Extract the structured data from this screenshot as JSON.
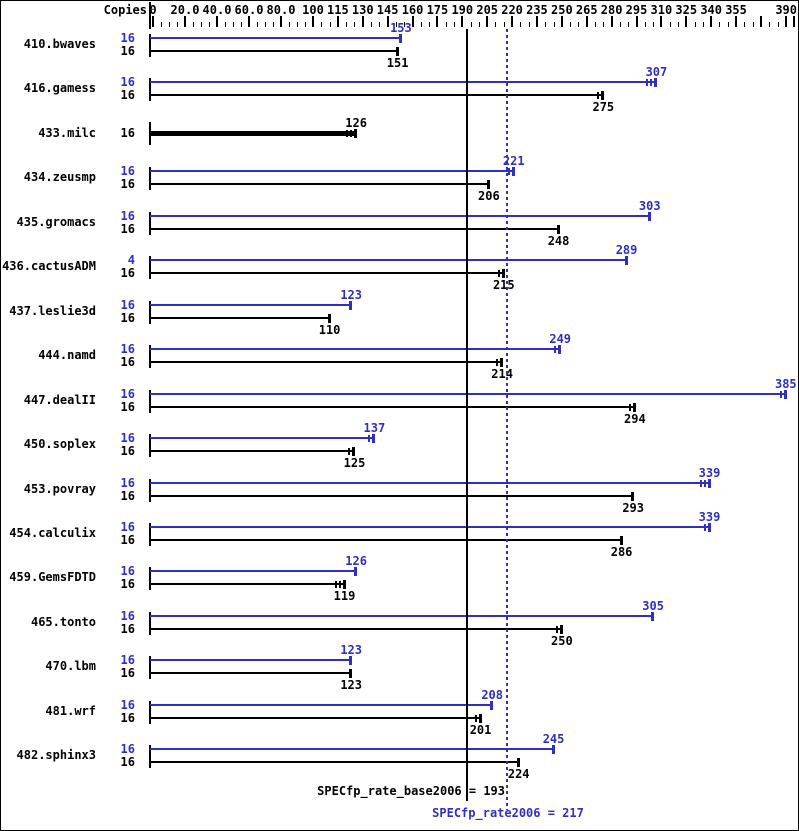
{
  "colors": {
    "peak_blue": "#3030c0",
    "base_black": "#000000",
    "background": "#ffffff"
  },
  "chart_data": {
    "type": "bar",
    "orientation": "horizontal",
    "copies_column_header": "Copies",
    "x_axis": {
      "range": [
        0,
        390
      ],
      "scale_note": "piecewise: 0-100 labeled every 20, 100-390 labeled every 15",
      "minor_tick_step": 5,
      "tick_labels": [
        {
          "v": 0,
          "t": "0"
        },
        {
          "v": 20,
          "t": "20.0"
        },
        {
          "v": 40,
          "t": "40.0"
        },
        {
          "v": 60,
          "t": "60.0"
        },
        {
          "v": 80,
          "t": "80.0"
        },
        {
          "v": 100,
          "t": "100"
        },
        {
          "v": 115,
          "t": "115"
        },
        {
          "v": 130,
          "t": "130"
        },
        {
          "v": 145,
          "t": "145"
        },
        {
          "v": 160,
          "t": "160"
        },
        {
          "v": 175,
          "t": "175"
        },
        {
          "v": 190,
          "t": "190"
        },
        {
          "v": 205,
          "t": "205"
        },
        {
          "v": 220,
          "t": "220"
        },
        {
          "v": 235,
          "t": "235"
        },
        {
          "v": 250,
          "t": "250"
        },
        {
          "v": 265,
          "t": "265"
        },
        {
          "v": 280,
          "t": "280"
        },
        {
          "v": 295,
          "t": "295"
        },
        {
          "v": 310,
          "t": "310"
        },
        {
          "v": 325,
          "t": "325"
        },
        {
          "v": 340,
          "t": "340"
        },
        {
          "v": 355,
          "t": "355"
        },
        {
          "v": 390,
          "t": "390"
        }
      ],
      "unlabeled_major_ticks": [
        370,
        385
      ]
    },
    "benchmarks": [
      {
        "name": "410.bwaves",
        "peak": {
          "copies": "16",
          "score": 153,
          "end_ticks": 1
        },
        "base": {
          "copies": "16",
          "score": 151,
          "end_ticks": 1
        }
      },
      {
        "name": "416.gamess",
        "peak": {
          "copies": "16",
          "score": 307,
          "end_ticks": 3
        },
        "base": {
          "copies": "16",
          "score": 275,
          "end_ticks": 2
        }
      },
      {
        "name": "433.milc",
        "single": true,
        "base": {
          "copies": "16",
          "score": 126,
          "end_ticks": 3
        }
      },
      {
        "name": "434.zeusmp",
        "peak": {
          "copies": "16",
          "score": 221,
          "end_ticks": 2
        },
        "base": {
          "copies": "16",
          "score": 206,
          "end_ticks": 1
        }
      },
      {
        "name": "435.gromacs",
        "peak": {
          "copies": "16",
          "score": 303,
          "end_ticks": 1
        },
        "base": {
          "copies": "16",
          "score": 248,
          "end_ticks": 1
        }
      },
      {
        "name": "436.cactusADM",
        "peak": {
          "copies": "4",
          "score": 289,
          "end_ticks": 1
        },
        "base": {
          "copies": "16",
          "score": 215,
          "end_ticks": 2
        }
      },
      {
        "name": "437.leslie3d",
        "peak": {
          "copies": "16",
          "score": 123,
          "end_ticks": 1
        },
        "base": {
          "copies": "16",
          "score": 110,
          "end_ticks": 1
        }
      },
      {
        "name": "444.namd",
        "peak": {
          "copies": "16",
          "score": 249,
          "end_ticks": 2
        },
        "base": {
          "copies": "16",
          "score": 214,
          "end_ticks": 2
        }
      },
      {
        "name": "447.dealII",
        "peak": {
          "copies": "16",
          "score": 385,
          "end_ticks": 2
        },
        "base": {
          "copies": "16",
          "score": 294,
          "end_ticks": 2
        }
      },
      {
        "name": "450.soplex",
        "peak": {
          "copies": "16",
          "score": 137,
          "end_ticks": 2
        },
        "base": {
          "copies": "16",
          "score": 125,
          "end_ticks": 2
        }
      },
      {
        "name": "453.povray",
        "peak": {
          "copies": "16",
          "score": 339,
          "end_ticks": 3
        },
        "base": {
          "copies": "16",
          "score": 293,
          "end_ticks": 1
        }
      },
      {
        "name": "454.calculix",
        "peak": {
          "copies": "16",
          "score": 339,
          "end_ticks": 2
        },
        "base": {
          "copies": "16",
          "score": 286,
          "end_ticks": 1
        }
      },
      {
        "name": "459.GemsFDTD",
        "peak": {
          "copies": "16",
          "score": 126,
          "end_ticks": 1
        },
        "base": {
          "copies": "16",
          "score": 119,
          "end_ticks": 3
        }
      },
      {
        "name": "465.tonto",
        "peak": {
          "copies": "16",
          "score": 305,
          "end_ticks": 1
        },
        "base": {
          "copies": "16",
          "score": 250,
          "end_ticks": 2
        }
      },
      {
        "name": "470.lbm",
        "peak": {
          "copies": "16",
          "score": 123,
          "end_ticks": 1
        },
        "base": {
          "copies": "16",
          "score": 123,
          "end_ticks": 1
        }
      },
      {
        "name": "481.wrf",
        "peak": {
          "copies": "16",
          "score": 208,
          "end_ticks": 1
        },
        "base": {
          "copies": "16",
          "score": 201,
          "end_ticks": 2
        }
      },
      {
        "name": "482.sphinx3",
        "peak": {
          "copies": "16",
          "score": 245,
          "end_ticks": 1
        },
        "base": {
          "copies": "16",
          "score": 224,
          "end_ticks": 1
        }
      }
    ],
    "reference_lines": [
      {
        "name": "base",
        "label": "SPECfp_rate_base2006 = 193",
        "value": 193,
        "line_style": "solid",
        "color": "#000000"
      },
      {
        "name": "peak",
        "label": "SPECfp_rate2006 = 217",
        "value": 217,
        "line_style": "dotted",
        "color": "#3030c0"
      }
    ]
  }
}
